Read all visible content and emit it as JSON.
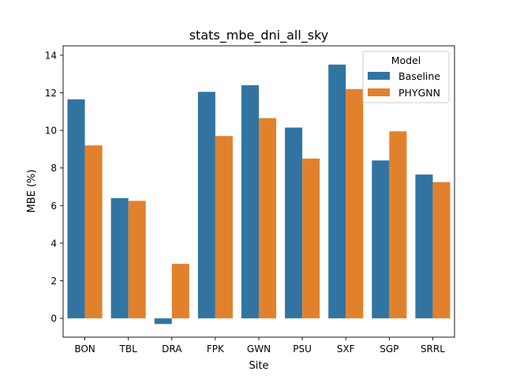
{
  "chart_data": {
    "type": "bar",
    "title": "stats_mbe_dni_all_sky",
    "xlabel": "Site",
    "ylabel": "MBE (%)",
    "categories": [
      "BON",
      "TBL",
      "DRA",
      "FPK",
      "GWN",
      "PSU",
      "SXF",
      "SGP",
      "SRRL"
    ],
    "series": [
      {
        "name": "Baseline",
        "color": "#3274a1",
        "values": [
          11.65,
          6.4,
          -0.3,
          12.05,
          12.4,
          10.15,
          13.5,
          8.4,
          7.65
        ]
      },
      {
        "name": "PHYGNN",
        "color": "#e1812c",
        "values": [
          9.2,
          6.25,
          2.9,
          9.7,
          10.65,
          8.5,
          12.2,
          9.95,
          7.25
        ]
      }
    ],
    "ylim": [
      -1,
      14.5
    ],
    "yticks": [
      0,
      2,
      4,
      6,
      8,
      10,
      12,
      14
    ],
    "grid": false,
    "legend": {
      "title": "Model",
      "position": "top-right"
    }
  }
}
